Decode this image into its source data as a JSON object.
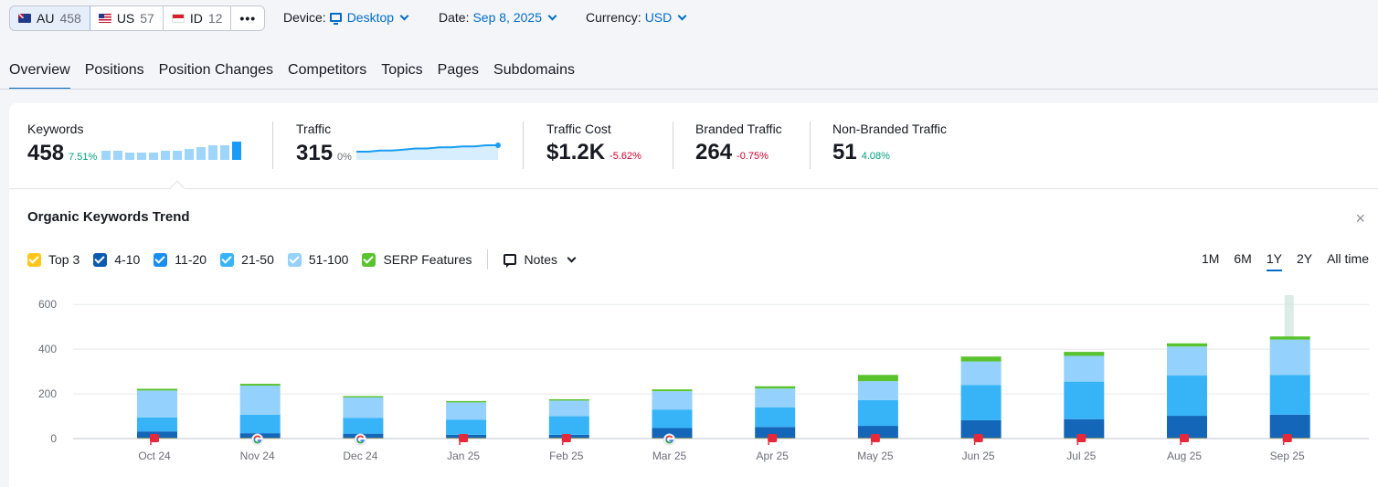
{
  "databases": [
    {
      "flag": "au",
      "code": "AU",
      "count": "458",
      "active": true
    },
    {
      "flag": "us",
      "code": "US",
      "count": "57",
      "active": false
    },
    {
      "flag": "id",
      "code": "ID",
      "count": "12",
      "active": false
    }
  ],
  "more_label": "•••",
  "filters": {
    "device": {
      "label": "Device:",
      "value": "Desktop",
      "icon": "monitor-icon"
    },
    "date": {
      "label": "Date:",
      "value": "Sep 8, 2025"
    },
    "currency": {
      "label": "Currency:",
      "value": "USD"
    }
  },
  "tabs": [
    "Overview",
    "Positions",
    "Position Changes",
    "Competitors",
    "Topics",
    "Pages",
    "Subdomains"
  ],
  "active_tab": "Overview",
  "metrics": {
    "keywords": {
      "label": "Keywords",
      "value": "458",
      "change": "7.51%",
      "trend": [
        5,
        5,
        4,
        4,
        4,
        5,
        5,
        6,
        7,
        8,
        8,
        10
      ]
    },
    "traffic": {
      "label": "Traffic",
      "value": "315",
      "change": "0%",
      "trend": [
        6,
        6,
        6.5,
        6.5,
        7,
        7.5,
        7.5,
        8,
        8,
        8.5,
        8.5,
        9,
        9
      ]
    },
    "traffic_cost": {
      "label": "Traffic Cost",
      "value": "$1.2K",
      "change": "-5.62%"
    },
    "branded": {
      "label": "Branded Traffic",
      "value": "264",
      "change": "-0.75%"
    },
    "non_branded": {
      "label": "Non-Branded Traffic",
      "value": "51",
      "change": "4.08%"
    }
  },
  "chart": {
    "title": "Organic Keywords Trend",
    "close_label": "×",
    "notes_label": "Notes",
    "legend": [
      {
        "name": "Top 3",
        "color": "#ffc61a"
      },
      {
        "name": "4-10",
        "color": "#0a5ab0"
      },
      {
        "name": "11-20",
        "color": "#1a8ef0"
      },
      {
        "name": "21-50",
        "color": "#37b4f8"
      },
      {
        "name": "51-100",
        "color": "#94d1fc"
      },
      {
        "name": "SERP Features",
        "color": "#59c32e"
      }
    ],
    "periods": [
      "1M",
      "6M",
      "1Y",
      "2Y",
      "All time"
    ],
    "active_period": "1Y",
    "colors": {
      "top3": "#ffc61a",
      "p4_10": "#1466b8",
      "p11_20": "#1a8ef0",
      "p21_50": "#37b4f8",
      "p51_100": "#94d1fc",
      "serp": "#59c32e"
    }
  },
  "chart_data": {
    "type": "bar",
    "stacked": true,
    "ylim": [
      0,
      650
    ],
    "yticks": [
      0,
      200,
      400,
      600
    ],
    "categories": [
      "Oct 24",
      "Nov 24",
      "Dec 24",
      "Jan 25",
      "Feb 25",
      "Mar 25",
      "Apr 25",
      "May 25",
      "Jun 25",
      "Jul 25",
      "Aug 25",
      "Sep 25"
    ],
    "series": [
      {
        "name": "Top 3",
        "values": [
          2,
          2,
          2,
          2,
          2,
          2,
          2,
          2,
          2,
          2,
          2,
          2
        ]
      },
      {
        "name": "4-10",
        "values": [
          30,
          22,
          20,
          15,
          15,
          45,
          50,
          55,
          80,
          85,
          100,
          105
        ]
      },
      {
        "name": "11-20",
        "values": [
          0,
          0,
          0,
          0,
          0,
          0,
          0,
          0,
          0,
          0,
          0,
          0
        ]
      },
      {
        "name": "21-50",
        "values": [
          63,
          83,
          70,
          68,
          83,
          83,
          87,
          115,
          158,
          168,
          180,
          178
        ]
      },
      {
        "name": "51-100",
        "values": [
          120,
          130,
          92,
          77,
          70,
          82,
          85,
          85,
          105,
          115,
          130,
          158
        ]
      },
      {
        "name": "SERP Features",
        "values": [
          8,
          8,
          6,
          6,
          6,
          8,
          10,
          28,
          22,
          18,
          14,
          14
        ]
      }
    ],
    "markers": [
      "flag",
      "google",
      "google",
      "flag",
      "flag",
      "google",
      "flag",
      "flag",
      "flag",
      "flag",
      "flag",
      "flag"
    ]
  }
}
